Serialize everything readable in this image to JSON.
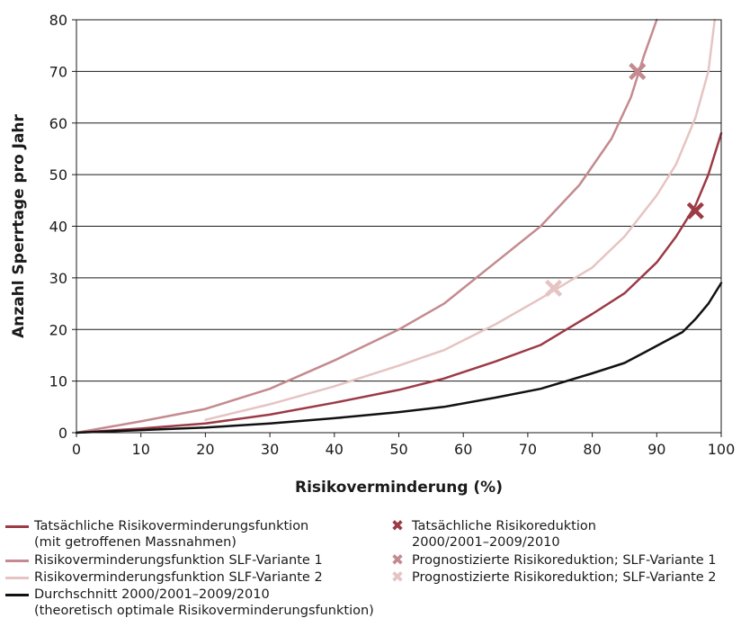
{
  "chart_data": {
    "type": "line",
    "xlabel": "Risikoverminderung (%)",
    "ylabel": "Anzahl Sperrtage pro Jahr",
    "xlim": [
      0,
      100
    ],
    "ylim": [
      0,
      80
    ],
    "x_ticks": [
      "0",
      "10",
      "20",
      "30",
      "40",
      "50",
      "60",
      "70",
      "80",
      "90",
      "100"
    ],
    "y_ticks": [
      "0",
      "10",
      "20",
      "30",
      "40",
      "50",
      "60",
      "70",
      "80"
    ],
    "grid": "horizontal",
    "legend_position": "bottom",
    "series": [
      {
        "name": "Tatsächliche Risikoverminderungsfunktion\n(mit getroffenen Massnahmen)",
        "color": "#9c3a46",
        "x": [
          0,
          10,
          20,
          30,
          40,
          50,
          57,
          65,
          72,
          80,
          85,
          90,
          93,
          96,
          98,
          100
        ],
        "y": [
          0,
          0.8,
          1.8,
          3.5,
          5.8,
          8.3,
          10.5,
          13.8,
          17,
          23,
          27,
          33,
          38,
          44,
          50,
          58
        ]
      },
      {
        "name": "Risikoverminderungsfunktion SLF-Variante 1",
        "color": "#c48a8f",
        "x": [
          0,
          10,
          20,
          30,
          40,
          50,
          57,
          65,
          72,
          78,
          83,
          86,
          88,
          90
        ],
        "y": [
          0,
          2.2,
          4.6,
          8.5,
          14,
          20,
          25,
          33,
          40,
          48,
          57,
          65,
          73,
          80
        ]
      },
      {
        "name": "Risikoverminderungsfunktion SLF-Variante 2",
        "color": "#e5c4c3",
        "x": [
          20,
          30,
          40,
          50,
          57,
          65,
          72,
          80,
          85,
          90,
          93,
          96,
          98,
          99
        ],
        "y": [
          2.5,
          5.5,
          9,
          13,
          16,
          21,
          26,
          32,
          38,
          46,
          52,
          61,
          70,
          80
        ]
      },
      {
        "name": "Durchschnitt 2000/2001–2009/2010\n(theoretisch optimale Risikoverminderungsfunktion)",
        "color": "#111111",
        "x": [
          0,
          10,
          20,
          30,
          40,
          50,
          57,
          65,
          72,
          80,
          85,
          88,
          91,
          94,
          96,
          98,
          100
        ],
        "y": [
          0,
          0.5,
          1,
          1.8,
          2.8,
          4,
          5,
          6.8,
          8.5,
          11.5,
          13.5,
          15.5,
          17.5,
          19.5,
          22,
          25,
          29
        ]
      }
    ],
    "markers": [
      {
        "name": "Tatsächliche Risikoreduktion\n2000/2001–2009/2010",
        "color": "#9c3a46",
        "x": 96,
        "y": 43
      },
      {
        "name": "Prognostizierte Risikoreduktion; SLF-Variante 1",
        "color": "#c48a8f",
        "x": 87,
        "y": 70
      },
      {
        "name": "Prognostizierte Risikoreduktion; SLF-Variante 2",
        "color": "#e5c4c3",
        "x": 74,
        "y": 28
      }
    ]
  }
}
